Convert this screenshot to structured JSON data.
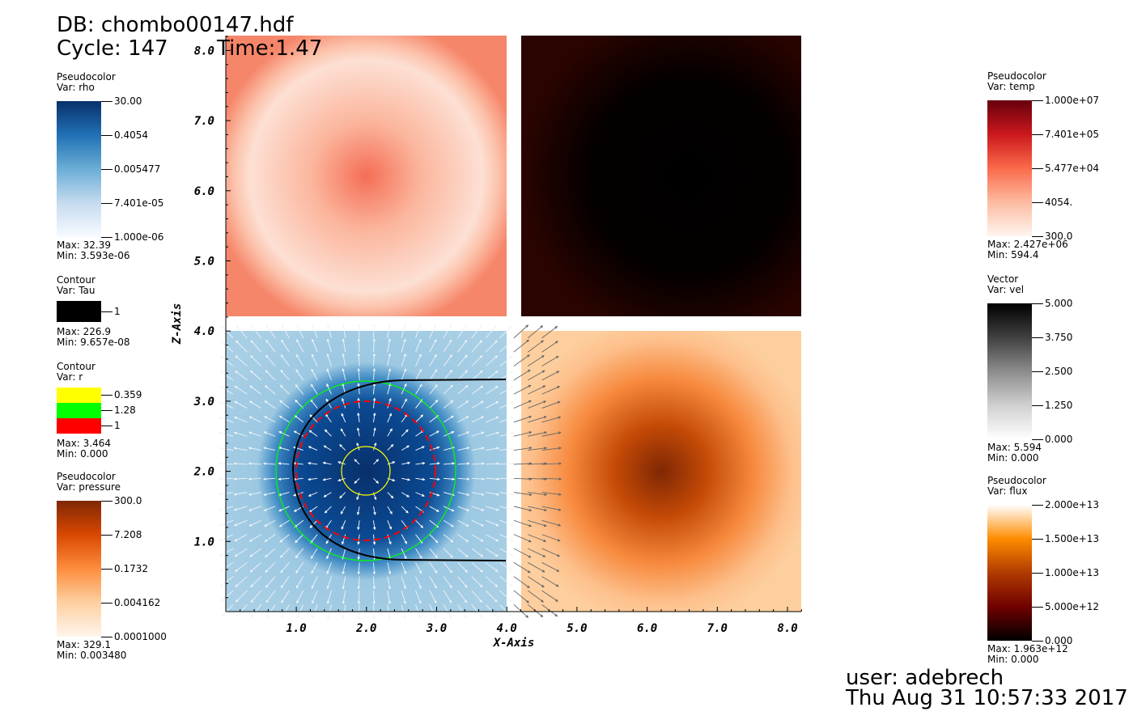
{
  "header": {
    "db": "DB: chombo00147.hdf",
    "cycle": "Cycle: 147",
    "time": "Time:1.47"
  },
  "footer": {
    "user": "user: adebrech",
    "date": "Thu Aug 31 10:57:33 2017"
  },
  "legends_left": [
    {
      "title": "Pseudocolor",
      "var": "Var: rho",
      "type": "gradient",
      "colors": [
        "#08306b",
        "#2171b5",
        "#6baed6",
        "#c6dbef",
        "#f7fbff"
      ],
      "ticks": [
        "30.00",
        "0.4054",
        "0.005477",
        "7.401e-05",
        "1.000e-06"
      ],
      "max": "Max:  32.39",
      "min": "Min:  3.593e-06"
    },
    {
      "title": "Contour",
      "var": "Var: Tau",
      "type": "levels",
      "levels": [
        {
          "color": "#000000",
          "label": "1"
        }
      ],
      "max": "Max:  226.9",
      "min": "Min:  9.657e-08"
    },
    {
      "title": "Contour",
      "var": "Var: r",
      "type": "levels",
      "levels": [
        {
          "color": "#ffff00",
          "label": "0.359"
        },
        {
          "color": "#00ff00",
          "label": "1.28"
        },
        {
          "color": "#ff0000",
          "label": "1"
        }
      ],
      "max": "Max:  3.464",
      "min": "Min:  0.000"
    },
    {
      "title": "Pseudocolor",
      "var": "Var: pressure",
      "type": "gradient",
      "colors": [
        "#7f2704",
        "#d94801",
        "#fd8d3c",
        "#fdd0a2",
        "#fff5eb"
      ],
      "ticks": [
        "300.0",
        "7.208",
        "0.1732",
        "0.004162",
        "0.0001000"
      ],
      "max": "Max:  329.1",
      "min": "Min:  0.003480"
    }
  ],
  "legends_right": [
    {
      "title": "Pseudocolor",
      "var": "Var: temp",
      "type": "gradient",
      "colors": [
        "#67000d",
        "#cb181d",
        "#fb6a4a",
        "#fcbba1",
        "#fff5f0"
      ],
      "ticks": [
        "1.000e+07",
        "7.401e+05",
        "5.477e+04",
        "4054.",
        "300.0"
      ],
      "max": "Max:  2.427e+06",
      "min": "Min:  594.4"
    },
    {
      "title": "Vector",
      "var": "Var: vel",
      "type": "gradient",
      "colors": [
        "#000000",
        "#404040",
        "#8c8c8c",
        "#d0d0d0",
        "#ffffff"
      ],
      "ticks": [
        "5.000",
        "3.750",
        "2.500",
        "1.250",
        "0.000"
      ],
      "max": "Max:  5.594",
      "min": "Min:  0.000"
    },
    {
      "title": "Pseudocolor",
      "var": "Var: flux",
      "type": "gradient",
      "colors": [
        "#ffffff",
        "#ff8c00",
        "#b03a00",
        "#700000",
        "#000000"
      ],
      "ticks": [
        "2.000e+13",
        "1.500e+13",
        "1.000e+13",
        "5.000e+12",
        "0.000"
      ],
      "max": "Max:  1.963e+12",
      "min": "Min:  0.000"
    }
  ],
  "chart_data": {
    "type": "heatmap",
    "xlabel": "X-Axis",
    "ylabel": "Z-Axis",
    "xlim": [
      0,
      8.2
    ],
    "ylim": [
      0,
      8.2
    ],
    "xticks": [
      "1.0",
      "2.0",
      "3.0",
      "4.0",
      "5.0",
      "6.0",
      "7.0",
      "8.0"
    ],
    "yticks": [
      "1.0",
      "2.0",
      "3.0",
      "4.0",
      "5.0",
      "6.0",
      "7.0",
      "8.0"
    ],
    "panels": [
      {
        "var": "temp",
        "x": [
          0,
          4
        ],
        "y": [
          4.2,
          8.2
        ],
        "center": [
          1.9,
          6.2
        ]
      },
      {
        "var": "flux",
        "x": [
          4.2,
          8.2
        ],
        "y": [
          4.2,
          8.2
        ],
        "center": [
          6.6,
          6.2
        ]
      },
      {
        "var": "rho",
        "x": [
          0,
          4
        ],
        "y": [
          0,
          4
        ],
        "center": [
          2,
          2
        ]
      },
      {
        "var": "pressure",
        "x": [
          4.2,
          8.2
        ],
        "y": [
          0,
          4
        ],
        "center": [
          6.2,
          2
        ]
      }
    ],
    "contours": [
      {
        "var": "r",
        "level": "0.359",
        "color": "#ffff00",
        "center": [
          2,
          2
        ],
        "radius": 0.359
      },
      {
        "var": "r",
        "level": "1",
        "color": "#ff0000",
        "center": [
          2,
          2
        ],
        "radius": 1
      },
      {
        "var": "r",
        "level": "1.28",
        "color": "#00ff00",
        "center": [
          2,
          2
        ],
        "radius": 1.28
      },
      {
        "var": "Tau",
        "level": "1",
        "color": "#000000"
      }
    ],
    "vector_field": {
      "var": "vel",
      "pattern": "radial outward from (2.0, 2.0)"
    }
  }
}
